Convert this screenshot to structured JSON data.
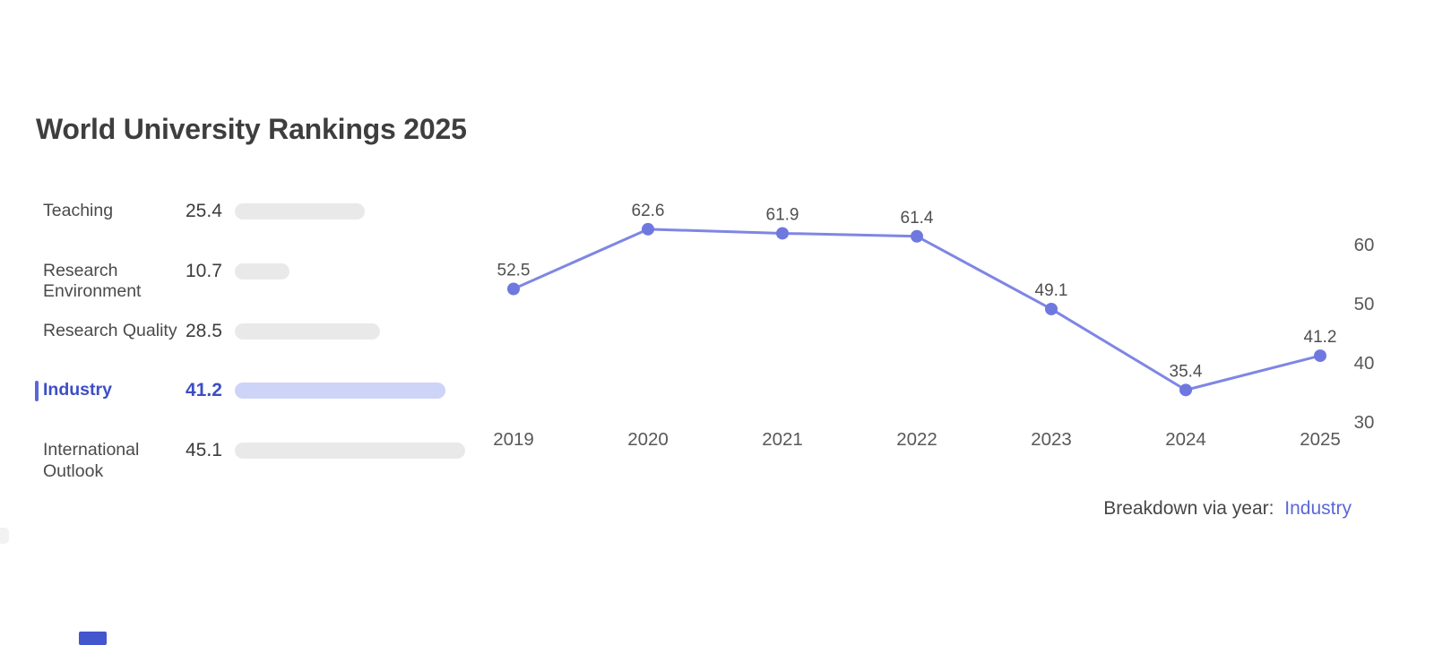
{
  "title": "World University Rankings 2025",
  "colors": {
    "accent_text": "#3c4ec6",
    "highlight_bar": "#ced3f8",
    "gray_bar": "#e9e9e9",
    "line": "#7e86e4",
    "point": "#6e78df",
    "link": "#5b68d8"
  },
  "metrics": [
    {
      "label": "Teaching",
      "value": 25.4,
      "highlighted": false
    },
    {
      "label": "Research Environment",
      "value": 10.7,
      "highlighted": false
    },
    {
      "label": "Research Quality",
      "value": 28.5,
      "highlighted": false
    },
    {
      "label": "Industry",
      "value": 41.2,
      "highlighted": true
    },
    {
      "label": "International Outlook",
      "value": 45.1,
      "highlighted": false
    }
  ],
  "chart_data": {
    "type": "line",
    "title": "",
    "xlabel": "",
    "ylabel": "",
    "categories": [
      "2019",
      "2020",
      "2021",
      "2022",
      "2023",
      "2024",
      "2025"
    ],
    "series": [
      {
        "name": "Industry",
        "values": [
          52.5,
          62.6,
          61.9,
          61.4,
          49.1,
          35.4,
          41.2
        ]
      }
    ],
    "y_ticks": [
      60,
      50,
      40,
      30
    ],
    "ylim": [
      27,
      66
    ],
    "grid": false,
    "legend_position": "none",
    "point_labels": true,
    "y_axis_side": "right"
  },
  "footer": {
    "breakdown_label": "Breakdown via year:",
    "breakdown_value": "Industry"
  }
}
